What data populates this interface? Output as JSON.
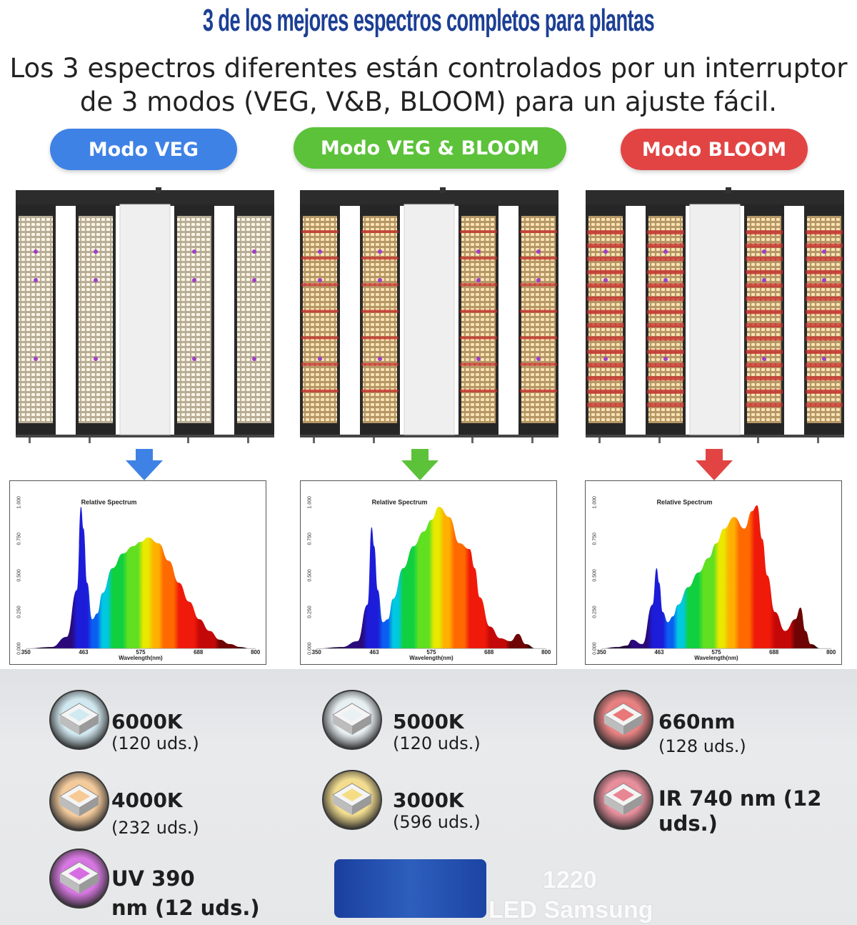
{
  "title": "3 de los mejores espectros completos para plantas",
  "subtitle_line1": "Los 3 espectros diferentes están controlados por un interruptor",
  "subtitle_line2": "de 3 modos (VEG, V&B, BLOOM) para un ajuste fácil.",
  "modes": [
    {
      "label": "Modo VEG",
      "color": "#3f82e6"
    },
    {
      "label": "Modo VEG & BLOOM",
      "color": "#5cc23a"
    },
    {
      "label": "Modo BLOOM",
      "color": "#e24444"
    }
  ],
  "chart_data": [
    {
      "type": "area",
      "title": "Relative Spectrum",
      "xlabel": "Wavelength(nm)",
      "xlim": [
        350,
        800
      ],
      "ylim": [
        0,
        1
      ],
      "x_ticks": [
        "350",
        "463",
        "575",
        "688",
        "800"
      ],
      "y_ticks": [
        "0.000",
        "0.250",
        "0.500",
        "0.750",
        "1.000"
      ],
      "x": [
        350,
        400,
        430,
        450,
        458,
        463,
        470,
        480,
        490,
        500,
        520,
        540,
        560,
        575,
        590,
        610,
        630,
        650,
        670,
        690,
        710,
        730,
        750,
        770,
        790,
        800
      ],
      "values": [
        0,
        0.01,
        0.08,
        0.4,
        0.97,
        0.82,
        0.45,
        0.2,
        0.24,
        0.38,
        0.55,
        0.65,
        0.7,
        0.73,
        0.76,
        0.72,
        0.6,
        0.45,
        0.32,
        0.2,
        0.12,
        0.06,
        0.03,
        0.01,
        0,
        0
      ]
    },
    {
      "type": "area",
      "title": "Relative Spectrum",
      "xlabel": "Wavelength(nm)",
      "xlim": [
        350,
        800
      ],
      "ylim": [
        0,
        1
      ],
      "x_ticks": [
        "350",
        "463",
        "575",
        "688",
        "800"
      ],
      "y_ticks": [
        "0.000",
        "0.250",
        "0.500",
        "0.750",
        "1.000"
      ],
      "x": [
        350,
        400,
        430,
        450,
        458,
        463,
        470,
        480,
        490,
        500,
        520,
        540,
        560,
        575,
        590,
        610,
        630,
        650,
        660,
        670,
        690,
        710,
        730,
        745,
        760,
        780,
        800
      ],
      "values": [
        0,
        0.01,
        0.05,
        0.3,
        0.83,
        0.7,
        0.4,
        0.18,
        0.2,
        0.34,
        0.55,
        0.7,
        0.8,
        0.88,
        0.97,
        0.9,
        0.72,
        0.68,
        0.55,
        0.35,
        0.15,
        0.07,
        0.05,
        0.1,
        0.03,
        0,
        0
      ]
    },
    {
      "type": "area",
      "title": "Relative Spectrum",
      "xlabel": "Wavelength(nm)",
      "xlim": [
        350,
        800
      ],
      "ylim": [
        0,
        1
      ],
      "x_ticks": [
        "350",
        "463",
        "575",
        "688",
        "800"
      ],
      "y_ticks": [
        "0.000",
        "0.250",
        "0.500",
        "0.750",
        "1.000"
      ],
      "x": [
        350,
        380,
        400,
        410,
        430,
        450,
        458,
        463,
        470,
        480,
        490,
        500,
        520,
        540,
        560,
        575,
        590,
        610,
        630,
        645,
        655,
        665,
        675,
        690,
        710,
        730,
        740,
        750,
        760,
        780,
        800
      ],
      "values": [
        0,
        0.01,
        0.02,
        0.06,
        0.03,
        0.3,
        0.55,
        0.45,
        0.25,
        0.18,
        0.22,
        0.3,
        0.42,
        0.52,
        0.62,
        0.72,
        0.82,
        0.9,
        0.82,
        0.94,
        0.98,
        0.75,
        0.5,
        0.25,
        0.12,
        0.2,
        0.28,
        0.12,
        0.03,
        0,
        0
      ]
    }
  ],
  "leds": [
    {
      "main": "6000K",
      "sub": "(120 uds.)",
      "icon": "cool-white-led-chip-icon",
      "tint": "#cde9f2"
    },
    {
      "main": "4000K",
      "sub": "(232 uds.)",
      "icon": "neutral-white-led-chip-icon",
      "tint": "#f7c48a"
    },
    {
      "main": "UV 390",
      "sub": "nm (12 uds.)",
      "icon": "uv-led-chip-icon",
      "tint": "#d35ee0"
    },
    {
      "main": "5000K",
      "sub": "(120 uds.)",
      "icon": "daylight-led-chip-icon",
      "tint": "#e8f1f4"
    },
    {
      "main": "3000K",
      "sub": "(596 uds.)",
      "icon": "warm-white-led-chip-icon",
      "tint": "#f5da7a"
    },
    {
      "main": "660nm",
      "sub": "(128 uds.)",
      "icon": "red-660nm-led-chip-icon",
      "tint": "#e86a6a"
    },
    {
      "main": "IR 740 nm (12",
      "sub": "uds.)",
      "icon": "ir-740nm-led-chip-icon",
      "tint": "#e87a8a"
    }
  ],
  "ghost_text_1": "1220",
  "ghost_text_2": "LED Samsung"
}
